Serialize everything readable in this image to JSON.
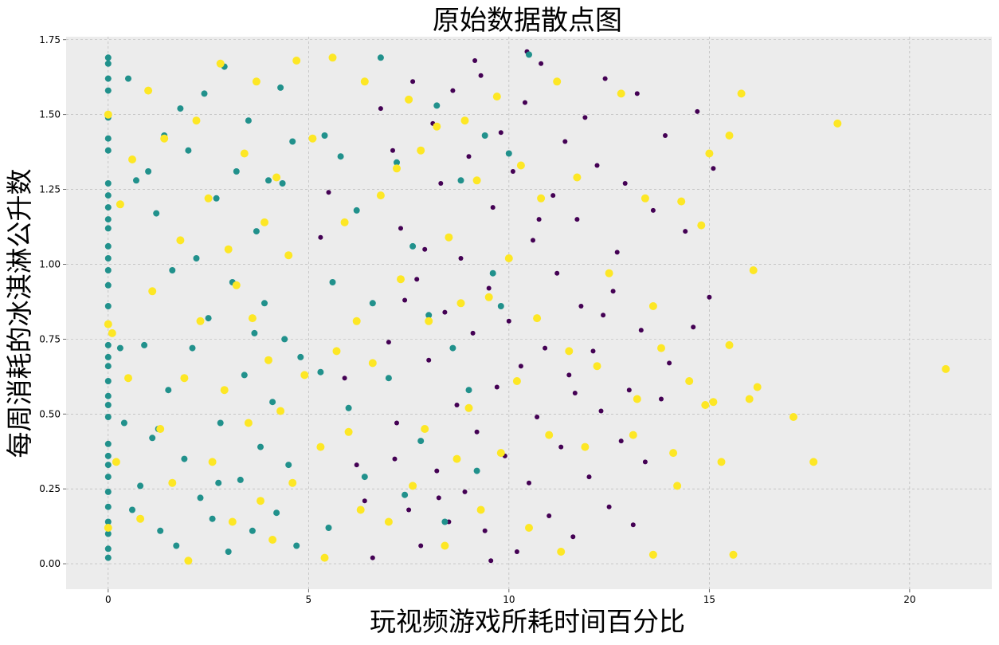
{
  "chart_data": {
    "type": "scatter",
    "title": "原始数据散点图",
    "xlabel": "玩视频游戏所耗时间百分比",
    "ylabel": "每周消耗的冰淇淋公升数",
    "xlim": [
      -1.05,
      22.05
    ],
    "ylim": [
      -0.085,
      1.76
    ],
    "x_ticks": [
      0,
      5,
      10,
      15,
      20
    ],
    "x_tick_labels": [
      "0",
      "5",
      "10",
      "15",
      "20"
    ],
    "y_ticks": [
      0.0,
      0.25,
      0.5,
      0.75,
      1.0,
      1.25,
      1.5,
      1.75
    ],
    "y_tick_labels": [
      "0.00",
      "0.25",
      "0.50",
      "0.75",
      "1.00",
      "1.25",
      "1.50",
      "1.75"
    ],
    "grid": true,
    "legend": null,
    "colors": {
      "background": "#ececec",
      "grid": "#b0b0b0",
      "series": [
        "#440154",
        "#21918c",
        "#fde725"
      ]
    },
    "series": [
      {
        "color": "#440154",
        "marker_size": "small",
        "points": [
          [
            5.3,
            1.09
          ],
          [
            5.5,
            1.24
          ],
          [
            5.9,
            0.62
          ],
          [
            6.2,
            0.33
          ],
          [
            6.4,
            0.21
          ],
          [
            6.6,
            0.02
          ],
          [
            6.8,
            1.52
          ],
          [
            7.0,
            0.74
          ],
          [
            7.1,
            1.38
          ],
          [
            7.2,
            0.47
          ],
          [
            7.3,
            1.12
          ],
          [
            7.4,
            0.88
          ],
          [
            7.5,
            0.18
          ],
          [
            7.6,
            1.61
          ],
          [
            7.7,
            0.95
          ],
          [
            7.8,
            0.06
          ],
          [
            7.9,
            1.05
          ],
          [
            8.0,
            0.68
          ],
          [
            8.1,
            1.47
          ],
          [
            8.2,
            0.31
          ],
          [
            8.3,
            1.27
          ],
          [
            8.4,
            0.84
          ],
          [
            8.5,
            0.14
          ],
          [
            8.6,
            1.58
          ],
          [
            8.7,
            0.53
          ],
          [
            8.8,
            1.02
          ],
          [
            8.9,
            0.24
          ],
          [
            9.0,
            1.36
          ],
          [
            9.1,
            0.77
          ],
          [
            9.2,
            0.44
          ],
          [
            9.3,
            1.63
          ],
          [
            9.4,
            0.11
          ],
          [
            9.5,
            0.92
          ],
          [
            9.6,
            1.19
          ],
          [
            9.7,
            0.59
          ],
          [
            9.8,
            1.44
          ],
          [
            9.9,
            0.36
          ],
          [
            10.0,
            0.81
          ],
          [
            10.1,
            1.31
          ],
          [
            10.2,
            0.04
          ],
          [
            10.3,
            0.66
          ],
          [
            10.4,
            1.54
          ],
          [
            10.5,
            0.27
          ],
          [
            10.6,
            1.08
          ],
          [
            10.7,
            0.49
          ],
          [
            10.8,
            1.67
          ],
          [
            10.9,
            0.72
          ],
          [
            11.0,
            0.16
          ],
          [
            11.1,
            1.23
          ],
          [
            11.2,
            0.97
          ],
          [
            11.3,
            0.39
          ],
          [
            11.4,
            1.41
          ],
          [
            11.5,
            0.63
          ],
          [
            11.6,
            0.09
          ],
          [
            11.7,
            1.15
          ],
          [
            11.8,
            0.86
          ],
          [
            11.9,
            1.49
          ],
          [
            12.0,
            0.29
          ],
          [
            12.1,
            0.71
          ],
          [
            12.2,
            1.33
          ],
          [
            12.3,
            0.51
          ],
          [
            12.4,
            1.62
          ],
          [
            12.5,
            0.19
          ],
          [
            12.6,
            0.91
          ],
          [
            12.7,
            1.04
          ],
          [
            12.8,
            0.41
          ],
          [
            12.9,
            1.27
          ],
          [
            13.0,
            0.58
          ],
          [
            13.1,
            0.13
          ],
          [
            13.2,
            1.57
          ],
          [
            13.3,
            0.78
          ],
          [
            13.4,
            0.34
          ],
          [
            13.6,
            1.18
          ],
          [
            13.8,
            0.55
          ],
          [
            13.9,
            1.43
          ],
          [
            14.0,
            0.67
          ],
          [
            14.2,
            0.26
          ],
          [
            14.4,
            1.11
          ],
          [
            14.6,
            0.79
          ],
          [
            14.7,
            1.51
          ],
          [
            15.0,
            0.89
          ],
          [
            15.1,
            1.32
          ],
          [
            9.55,
            0.01
          ],
          [
            10.45,
            1.71
          ],
          [
            8.25,
            0.22
          ],
          [
            9.15,
            1.68
          ],
          [
            11.65,
            0.57
          ],
          [
            7.15,
            0.35
          ],
          [
            12.35,
            0.83
          ],
          [
            10.75,
            1.15
          ]
        ]
      },
      {
        "color": "#21918c",
        "marker_size": "medium",
        "points": [
          [
            0,
            0.02
          ],
          [
            0,
            0.05
          ],
          [
            0,
            0.1
          ],
          [
            0,
            0.14
          ],
          [
            0,
            0.19
          ],
          [
            0,
            0.24
          ],
          [
            0,
            0.29
          ],
          [
            0,
            0.33
          ],
          [
            0,
            0.36
          ],
          [
            0,
            0.4
          ],
          [
            0,
            0.49
          ],
          [
            0,
            0.53
          ],
          [
            0,
            0.56
          ],
          [
            0,
            0.61
          ],
          [
            0,
            0.66
          ],
          [
            0,
            0.69
          ],
          [
            0,
            0.73
          ],
          [
            0,
            0.8
          ],
          [
            0,
            0.86
          ],
          [
            0,
            0.93
          ],
          [
            0,
            0.98
          ],
          [
            0,
            1.02
          ],
          [
            0,
            1.06
          ],
          [
            0,
            1.12
          ],
          [
            0,
            1.15
          ],
          [
            0,
            1.19
          ],
          [
            0,
            1.23
          ],
          [
            0,
            1.27
          ],
          [
            0,
            1.38
          ],
          [
            0,
            1.42
          ],
          [
            0,
            1.49
          ],
          [
            0,
            1.58
          ],
          [
            0,
            1.62
          ],
          [
            0,
            1.67
          ],
          [
            0,
            1.69
          ],
          [
            0.3,
            0.72
          ],
          [
            0.4,
            0.47
          ],
          [
            0.5,
            1.62
          ],
          [
            0.6,
            0.18
          ],
          [
            0.7,
            1.28
          ],
          [
            0.8,
            0.26
          ],
          [
            0.9,
            0.73
          ],
          [
            1.0,
            1.31
          ],
          [
            1.1,
            0.42
          ],
          [
            1.2,
            1.17
          ],
          [
            1.3,
            0.11
          ],
          [
            1.4,
            1.43
          ],
          [
            1.5,
            0.58
          ],
          [
            1.6,
            0.98
          ],
          [
            1.7,
            0.06
          ],
          [
            1.8,
            1.52
          ],
          [
            1.9,
            0.35
          ],
          [
            2.0,
            1.38
          ],
          [
            2.1,
            0.72
          ],
          [
            2.2,
            1.02
          ],
          [
            2.3,
            0.22
          ],
          [
            2.4,
            1.57
          ],
          [
            2.5,
            0.82
          ],
          [
            2.6,
            0.15
          ],
          [
            2.7,
            1.22
          ],
          [
            2.8,
            0.47
          ],
          [
            2.9,
            1.66
          ],
          [
            3.0,
            0.04
          ],
          [
            3.1,
            0.94
          ],
          [
            3.2,
            1.31
          ],
          [
            3.3,
            0.28
          ],
          [
            3.4,
            0.63
          ],
          [
            3.5,
            1.48
          ],
          [
            3.6,
            0.11
          ],
          [
            3.7,
            1.11
          ],
          [
            3.8,
            0.39
          ],
          [
            3.9,
            0.87
          ],
          [
            4.0,
            1.28
          ],
          [
            4.1,
            0.54
          ],
          [
            4.2,
            0.17
          ],
          [
            4.3,
            1.59
          ],
          [
            4.4,
            0.75
          ],
          [
            4.5,
            0.33
          ],
          [
            4.6,
            1.41
          ],
          [
            4.7,
            0.06
          ],
          [
            4.8,
            0.69
          ],
          [
            5.3,
            0.64
          ],
          [
            5.4,
            1.43
          ],
          [
            5.5,
            0.12
          ],
          [
            5.6,
            0.94
          ],
          [
            5.8,
            1.36
          ],
          [
            6.0,
            0.52
          ],
          [
            6.2,
            1.18
          ],
          [
            6.4,
            0.29
          ],
          [
            6.6,
            0.87
          ],
          [
            6.8,
            1.69
          ],
          [
            7.0,
            0.62
          ],
          [
            7.2,
            1.34
          ],
          [
            7.4,
            0.23
          ],
          [
            7.6,
            1.06
          ],
          [
            7.8,
            0.41
          ],
          [
            8.0,
            0.83
          ],
          [
            8.2,
            1.53
          ],
          [
            8.4,
            0.14
          ],
          [
            8.6,
            0.72
          ],
          [
            8.8,
            1.28
          ],
          [
            9.0,
            0.58
          ],
          [
            9.2,
            0.31
          ],
          [
            9.4,
            1.43
          ],
          [
            9.6,
            0.97
          ],
          [
            9.8,
            0.86
          ],
          [
            10.0,
            1.37
          ],
          [
            10.5,
            1.7
          ],
          [
            1.25,
            0.45
          ],
          [
            2.75,
            0.27
          ],
          [
            3.65,
            0.77
          ],
          [
            4.35,
            1.27
          ]
        ]
      },
      {
        "color": "#fde725",
        "marker_size": "large",
        "points": [
          [
            0,
            0.8
          ],
          [
            0,
            1.5
          ],
          [
            0,
            0.12
          ],
          [
            0.1,
            0.77
          ],
          [
            0.2,
            0.34
          ],
          [
            0.3,
            1.2
          ],
          [
            0.5,
            0.62
          ],
          [
            0.6,
            1.35
          ],
          [
            0.8,
            0.15
          ],
          [
            1.0,
            1.58
          ],
          [
            1.1,
            0.91
          ],
          [
            1.3,
            0.45
          ],
          [
            1.4,
            1.42
          ],
          [
            1.6,
            0.27
          ],
          [
            1.8,
            1.08
          ],
          [
            1.9,
            0.62
          ],
          [
            2.0,
            0.01
          ],
          [
            2.2,
            1.48
          ],
          [
            2.3,
            0.81
          ],
          [
            2.5,
            1.22
          ],
          [
            2.6,
            0.34
          ],
          [
            2.8,
            1.67
          ],
          [
            2.9,
            0.58
          ],
          [
            3.0,
            1.05
          ],
          [
            3.1,
            0.14
          ],
          [
            3.2,
            0.93
          ],
          [
            3.4,
            1.37
          ],
          [
            3.5,
            0.47
          ],
          [
            3.6,
            0.82
          ],
          [
            3.7,
            1.61
          ],
          [
            3.8,
            0.21
          ],
          [
            3.9,
            1.14
          ],
          [
            4.0,
            0.68
          ],
          [
            4.1,
            0.08
          ],
          [
            4.2,
            1.29
          ],
          [
            4.3,
            0.51
          ],
          [
            4.5,
            1.03
          ],
          [
            4.6,
            0.27
          ],
          [
            4.7,
            1.68
          ],
          [
            4.9,
            0.63
          ],
          [
            5.1,
            1.42
          ],
          [
            5.3,
            0.39
          ],
          [
            5.4,
            0.02
          ],
          [
            5.6,
            1.69
          ],
          [
            5.7,
            0.71
          ],
          [
            5.9,
            1.14
          ],
          [
            6.0,
            0.44
          ],
          [
            6.2,
            0.81
          ],
          [
            6.3,
            0.18
          ],
          [
            6.4,
            1.61
          ],
          [
            6.6,
            0.67
          ],
          [
            6.8,
            1.23
          ],
          [
            7.0,
            0.14
          ],
          [
            7.2,
            1.32
          ],
          [
            7.3,
            0.95
          ],
          [
            7.5,
            1.55
          ],
          [
            7.6,
            0.26
          ],
          [
            7.8,
            1.38
          ],
          [
            7.9,
            0.45
          ],
          [
            8.0,
            0.81
          ],
          [
            8.2,
            1.46
          ],
          [
            8.4,
            0.06
          ],
          [
            8.5,
            1.09
          ],
          [
            8.7,
            0.35
          ],
          [
            8.8,
            0.87
          ],
          [
            8.9,
            1.48
          ],
          [
            9.0,
            0.52
          ],
          [
            9.2,
            1.28
          ],
          [
            9.3,
            0.18
          ],
          [
            9.5,
            0.89
          ],
          [
            9.7,
            1.56
          ],
          [
            9.8,
            0.37
          ],
          [
            10.0,
            1.02
          ],
          [
            10.2,
            0.61
          ],
          [
            10.3,
            1.33
          ],
          [
            10.5,
            0.12
          ],
          [
            10.7,
            0.82
          ],
          [
            10.8,
            1.22
          ],
          [
            11.0,
            0.43
          ],
          [
            11.2,
            1.61
          ],
          [
            11.3,
            0.04
          ],
          [
            11.5,
            0.71
          ],
          [
            11.7,
            1.29
          ],
          [
            11.9,
            0.39
          ],
          [
            12.2,
            0.66
          ],
          [
            12.5,
            0.97
          ],
          [
            12.8,
            1.57
          ],
          [
            13.1,
            0.43
          ],
          [
            13.4,
            1.22
          ],
          [
            13.6,
            0.86
          ],
          [
            13.6,
            0.03
          ],
          [
            13.8,
            0.72
          ],
          [
            14.1,
            0.37
          ],
          [
            14.3,
            1.21
          ],
          [
            14.5,
            0.61
          ],
          [
            14.8,
            1.13
          ],
          [
            15.0,
            1.37
          ],
          [
            15.1,
            0.54
          ],
          [
            15.5,
            1.43
          ],
          [
            15.5,
            0.73
          ],
          [
            15.6,
            0.03
          ],
          [
            15.8,
            1.57
          ],
          [
            16.0,
            0.55
          ],
          [
            16.1,
            0.98
          ],
          [
            16.2,
            0.59
          ],
          [
            17.1,
            0.49
          ],
          [
            17.6,
            0.34
          ],
          [
            18.2,
            1.47
          ],
          [
            20.9,
            0.65
          ],
          [
            14.9,
            0.53
          ],
          [
            15.3,
            0.34
          ],
          [
            14.2,
            0.26
          ],
          [
            13.2,
            0.55
          ]
        ]
      }
    ]
  }
}
